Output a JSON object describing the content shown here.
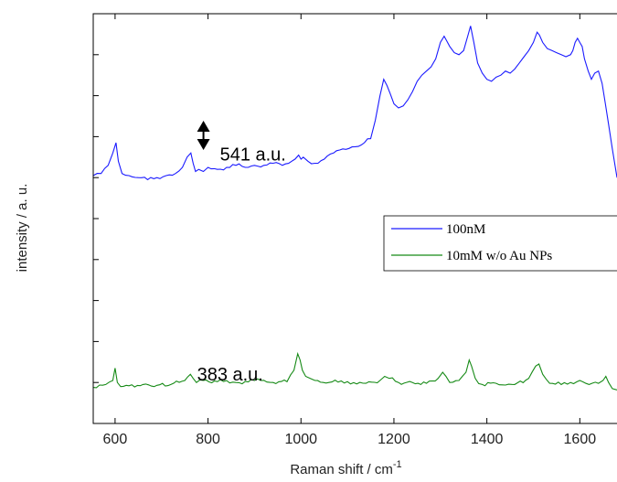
{
  "chart_data": {
    "type": "line",
    "xlabel": "Raman shift / cm",
    "xlabel_sup": "-1",
    "ylabel": "intensity / a. u.",
    "xlim": [
      553,
      1680
    ],
    "ylim": [
      0,
      10
    ],
    "grid": false,
    "legend_position": "right",
    "x_ticks": [
      {
        "value": 600,
        "label": "600"
      },
      {
        "value": 800,
        "label": "800"
      },
      {
        "value": 1000,
        "label": "1000"
      },
      {
        "value": 1200,
        "label": "1200"
      },
      {
        "value": 1400,
        "label": "1400"
      },
      {
        "value": 1600,
        "label": "1600"
      }
    ],
    "y_ticks": [
      1,
      2,
      3,
      4,
      5,
      6,
      7,
      8,
      9
    ],
    "series": [
      {
        "name": "100nM",
        "color": "#1a1aff",
        "x": [
          553,
          570,
          585,
          595,
          602,
          607,
          615,
          630,
          650,
          670,
          690,
          710,
          730,
          745,
          755,
          763,
          768,
          773,
          780,
          790,
          800,
          820,
          840,
          860,
          880,
          900,
          920,
          940,
          960,
          980,
          995,
          1000,
          1005,
          1015,
          1030,
          1050,
          1070,
          1090,
          1110,
          1130,
          1150,
          1160,
          1170,
          1178,
          1185,
          1192,
          1200,
          1210,
          1220,
          1230,
          1240,
          1250,
          1260,
          1270,
          1280,
          1290,
          1300,
          1308,
          1313,
          1320,
          1330,
          1340,
          1350,
          1360,
          1365,
          1372,
          1380,
          1390,
          1400,
          1410,
          1420,
          1430,
          1440,
          1450,
          1460,
          1470,
          1480,
          1490,
          1500,
          1508,
          1513,
          1520,
          1530,
          1540,
          1550,
          1560,
          1570,
          1580,
          1585,
          1590,
          1595,
          1600,
          1605,
          1610,
          1618,
          1625,
          1632,
          1640,
          1648,
          1655,
          1662,
          1670,
          1680
        ],
        "y": [
          6.05,
          6.1,
          6.3,
          6.6,
          6.85,
          6.4,
          6.1,
          6.05,
          6.0,
          5.95,
          6.0,
          6.05,
          6.1,
          6.25,
          6.5,
          6.6,
          6.35,
          6.15,
          6.2,
          6.15,
          6.25,
          6.2,
          6.25,
          6.3,
          6.25,
          6.3,
          6.3,
          6.35,
          6.3,
          6.4,
          6.55,
          6.45,
          6.5,
          6.4,
          6.35,
          6.45,
          6.6,
          6.7,
          6.75,
          6.8,
          6.95,
          7.4,
          8.0,
          8.4,
          8.25,
          8.05,
          7.8,
          7.7,
          7.75,
          7.9,
          8.1,
          8.35,
          8.5,
          8.6,
          8.7,
          8.9,
          9.3,
          9.45,
          9.35,
          9.2,
          9.05,
          9.0,
          9.1,
          9.5,
          9.7,
          9.3,
          8.8,
          8.55,
          8.4,
          8.35,
          8.45,
          8.5,
          8.6,
          8.55,
          8.65,
          8.8,
          8.95,
          9.1,
          9.3,
          9.55,
          9.48,
          9.3,
          9.15,
          9.1,
          9.05,
          9.0,
          8.95,
          9.0,
          9.1,
          9.3,
          9.4,
          9.3,
          9.2,
          8.9,
          8.6,
          8.4,
          8.55,
          8.6,
          8.3,
          7.8,
          7.3,
          6.7,
          6.0
        ]
      },
      {
        "name": "10mM w/o Au NPs",
        "color": "#168a16",
        "x": [
          553,
          580,
          595,
          600,
          605,
          612,
          630,
          660,
          690,
          720,
          750,
          762,
          768,
          775,
          790,
          820,
          860,
          900,
          940,
          970,
          985,
          993,
          998,
          1003,
          1010,
          1020,
          1030,
          1060,
          1100,
          1140,
          1170,
          1180,
          1190,
          1210,
          1240,
          1270,
          1295,
          1305,
          1312,
          1320,
          1340,
          1355,
          1362,
          1367,
          1375,
          1390,
          1420,
          1460,
          1490,
          1505,
          1512,
          1520,
          1535,
          1560,
          1580,
          1600,
          1620,
          1640,
          1650,
          1656,
          1662,
          1670,
          1680
        ],
        "y": [
          0.88,
          0.95,
          1.05,
          1.35,
          1.0,
          0.9,
          0.92,
          0.95,
          0.93,
          0.95,
          1.05,
          1.2,
          1.1,
          1.0,
          1.05,
          1.02,
          1.0,
          1.05,
          1.0,
          1.02,
          1.3,
          1.7,
          1.55,
          1.3,
          1.15,
          1.1,
          1.05,
          1.0,
          1.02,
          0.98,
          1.05,
          1.15,
          1.1,
          1.0,
          1.0,
          0.98,
          1.1,
          1.25,
          1.15,
          1.0,
          1.05,
          1.25,
          1.55,
          1.4,
          1.1,
          0.95,
          0.98,
          0.95,
          1.1,
          1.4,
          1.45,
          1.2,
          0.98,
          0.95,
          1.0,
          1.05,
          0.95,
          0.98,
          1.05,
          1.15,
          1.0,
          0.85,
          0.82
        ]
      }
    ],
    "annotations": [
      {
        "text": "541 a.u.",
        "x": 800,
        "y": 6.6
      },
      {
        "text": "383 a.u.",
        "x": 800,
        "y": 1.2
      }
    ]
  }
}
